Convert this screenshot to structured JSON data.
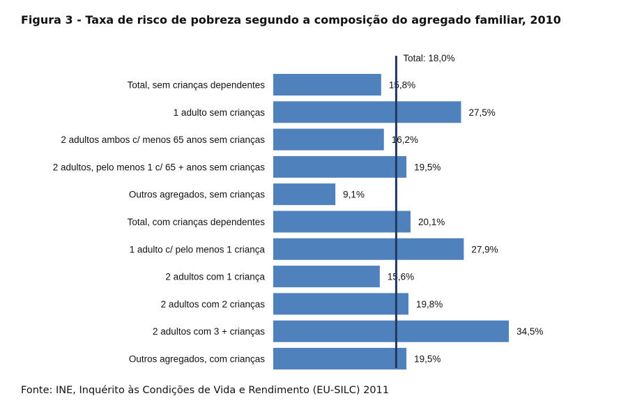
{
  "title": "Figura 3 - Taxa de risco de pobreza segundo a composição do agregado familiar, 2010",
  "source": "Fonte: INE, Inquérito às Condições de Vida e Rendimento (EU-SILC) 2011",
  "colors": {
    "bar": "#4F81BD",
    "reference_line": "#1F3864"
  },
  "chart_data": {
    "type": "bar",
    "orientation": "horizontal",
    "categories": [
      "Total, sem crianças dependentes",
      "1 adulto sem crianças",
      "2 adultos ambos c/ menos 65 anos sem crianças",
      "2 adultos, pelo menos 1 c/ 65 + anos sem crianças",
      "Outros agregados, sem crianças",
      "Total, com crianças dependentes",
      "1 adulto c/ pelo menos 1 criança",
      "2 adultos com 1 criança",
      "2 adultos com 2 crianças",
      "2 adultos com 3 + crianças",
      "Outros agregados, com crianças"
    ],
    "values": [
      15.8,
      27.5,
      16.2,
      19.5,
      9.1,
      20.1,
      27.9,
      15.6,
      19.8,
      34.5,
      19.5
    ],
    "value_labels": [
      "15,8%",
      "27,5%",
      "16,2%",
      "19,5%",
      "9,1%",
      "20,1%",
      "27,9%",
      "15,6%",
      "19,8%",
      "34,5%",
      "19,5%"
    ],
    "reference": {
      "value": 18.0,
      "label": "Total: 18,0%"
    },
    "xlim": [
      0,
      40
    ],
    "grid": false,
    "legend": "none",
    "xlabel": "",
    "ylabel": ""
  }
}
